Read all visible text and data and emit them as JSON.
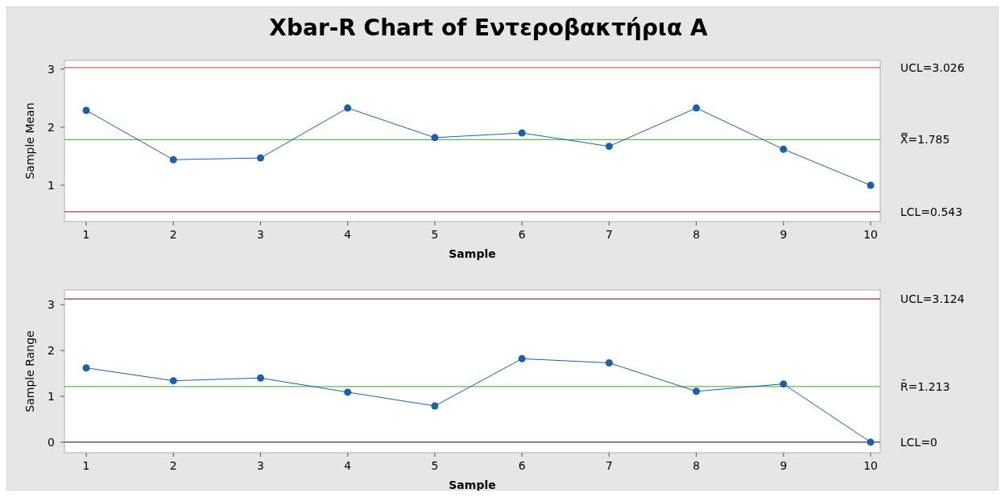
{
  "chart_data": [
    {
      "type": "line",
      "title": "Xbar-R Chart of Εντεροβακτήρια A",
      "xlabel": "Sample",
      "ylabel": "Sample Mean",
      "x": [
        1,
        2,
        3,
        4,
        5,
        6,
        7,
        8,
        9,
        10
      ],
      "xlim": [
        0.75,
        10.11
      ],
      "xticks": [
        1,
        2,
        3,
        4,
        5,
        6,
        7,
        8,
        9,
        10
      ],
      "ylim": [
        0.375,
        3.15
      ],
      "yticks": [
        1,
        2,
        3
      ],
      "marker": "circle",
      "series": [
        {
          "color": "#1f5fa8",
          "values": [
            2.29,
            1.44,
            1.47,
            2.33,
            1.82,
            1.9,
            1.67,
            2.33,
            1.62,
            1.0
          ]
        }
      ],
      "ref_lines": [
        {
          "axis": "y",
          "value": 3.026,
          "label": "UCL=3.026",
          "color": "#d2605a"
        },
        {
          "axis": "y",
          "value": 1.785,
          "label": "X̿=1.785",
          "color": "#5cb85c"
        },
        {
          "axis": "y",
          "value": 0.543,
          "label": "LCL=0.543",
          "color": "#a0453f"
        }
      ]
    },
    {
      "type": "line",
      "xlabel": "Sample",
      "ylabel": "Sample Range",
      "x": [
        1,
        2,
        3,
        4,
        5,
        6,
        7,
        8,
        9,
        10
      ],
      "xlim": [
        0.75,
        10.11
      ],
      "xticks": [
        1,
        2,
        3,
        4,
        5,
        6,
        7,
        8,
        9,
        10
      ],
      "ylim": [
        -0.23,
        3.32
      ],
      "yticks": [
        0,
        1,
        2,
        3
      ],
      "marker": "circle",
      "series": [
        {
          "color": "#1f5fa8",
          "values": [
            1.62,
            1.34,
            1.4,
            1.09,
            0.79,
            1.82,
            1.73,
            1.11,
            1.27,
            0
          ]
        }
      ],
      "ref_lines": [
        {
          "axis": "y",
          "value": 3.124,
          "label": "UCL=3.124",
          "color": "#8b3a3a"
        },
        {
          "axis": "y",
          "value": 1.213,
          "label": "R̄=1.213",
          "color": "#5cb85c"
        },
        {
          "axis": "y",
          "value": 0,
          "label": "LCL=0",
          "color": "#3c3c6e"
        }
      ]
    }
  ]
}
